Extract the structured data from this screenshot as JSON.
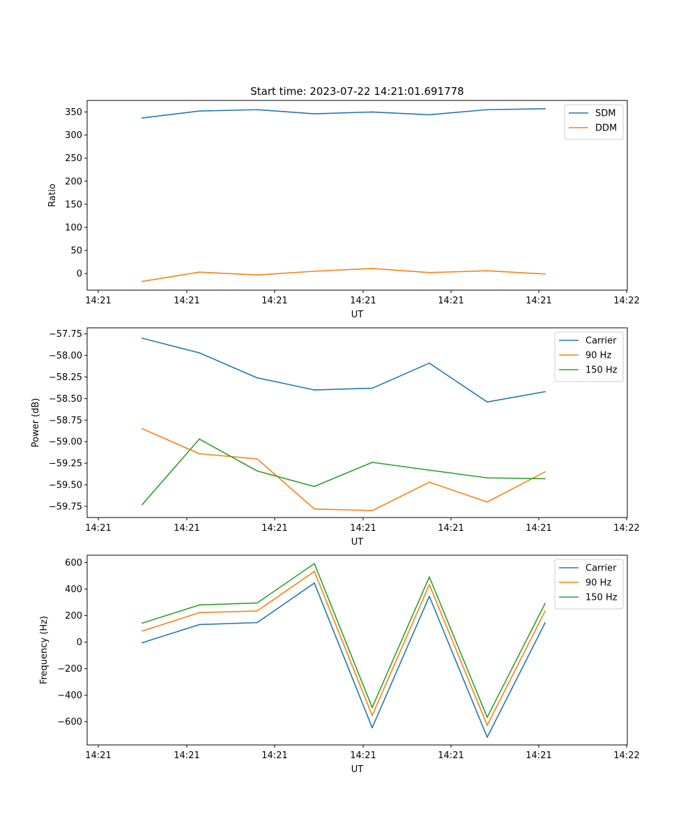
{
  "chart_data": [
    {
      "type": "line",
      "title": "Start time: 2023-07-22 14:21:01.691778",
      "xlabel": "UT",
      "ylabel": "Ratio",
      "x_tick_labels": [
        "14:21",
        "14:21",
        "14:21",
        "14:21",
        "14:21",
        "14:21",
        "14:22"
      ],
      "y_ticks": [
        0,
        50,
        100,
        150,
        200,
        250,
        300,
        350
      ],
      "y_tick_labels": [
        "0",
        "50",
        "100",
        "150",
        "200",
        "250",
        "300",
        "350"
      ],
      "ylim": [
        -36,
        375
      ],
      "legend_position": "top-right",
      "series": [
        {
          "name": "SDM",
          "color": "#1f77b4",
          "values": [
            337,
            352,
            355,
            346,
            350,
            344,
            355,
            357
          ]
        },
        {
          "name": "DDM",
          "color": "#ff7f0e",
          "values": [
            -17,
            3,
            -3,
            5,
            11,
            2,
            6,
            -1
          ]
        }
      ]
    },
    {
      "type": "line",
      "title": "",
      "xlabel": "UT",
      "ylabel": "Power (dB)",
      "x_tick_labels": [
        "14:21",
        "14:21",
        "14:21",
        "14:21",
        "14:21",
        "14:21",
        "14:22"
      ],
      "y_ticks": [
        -57.75,
        -58.0,
        -58.25,
        -58.5,
        -58.75,
        -59.0,
        -59.25,
        -59.5,
        -59.75
      ],
      "y_tick_labels": [
        "−57.75",
        "−58.00",
        "−58.25",
        "−58.50",
        "−58.75",
        "−59.00",
        "−59.25",
        "−59.50",
        "−59.75"
      ],
      "ylim": [
        -59.88,
        -57.68
      ],
      "legend_position": "top-right",
      "series": [
        {
          "name": "Carrier",
          "color": "#1f77b4",
          "values": [
            -57.8,
            -57.97,
            -58.26,
            -58.4,
            -58.38,
            -58.09,
            -58.54,
            -58.42
          ]
        },
        {
          "name": "90 Hz",
          "color": "#ff7f0e",
          "values": [
            -58.85,
            -59.14,
            -59.2,
            -59.78,
            -59.8,
            -59.47,
            -59.7,
            -59.35
          ]
        },
        {
          "name": "150 Hz",
          "color": "#2ca02c",
          "values": [
            -59.73,
            -58.97,
            -59.34,
            -59.52,
            -59.24,
            -59.33,
            -59.42,
            -59.43
          ]
        }
      ]
    },
    {
      "type": "line",
      "title": "",
      "xlabel": "UT",
      "ylabel": "Frequency (Hz)",
      "x_tick_labels": [
        "14:21",
        "14:21",
        "14:21",
        "14:21",
        "14:21",
        "14:21",
        "14:22"
      ],
      "y_ticks": [
        600,
        400,
        200,
        0,
        -200,
        -400,
        -600
      ],
      "y_tick_labels": [
        "600",
        "400",
        "200",
        "0",
        "−200",
        "−400",
        "−600"
      ],
      "ylim": [
        -775,
        655
      ],
      "legend_position": "top-right",
      "series": [
        {
          "name": "Carrier",
          "color": "#1f77b4",
          "values": [
            -5,
            132,
            147,
            445,
            -645,
            345,
            -717,
            145
          ]
        },
        {
          "name": "90 Hz",
          "color": "#ff7f0e",
          "values": [
            83,
            222,
            235,
            533,
            -553,
            433,
            -627,
            233
          ]
        },
        {
          "name": "150 Hz",
          "color": "#2ca02c",
          "values": [
            143,
            280,
            295,
            592,
            -493,
            491,
            -567,
            291
          ]
        }
      ]
    }
  ]
}
